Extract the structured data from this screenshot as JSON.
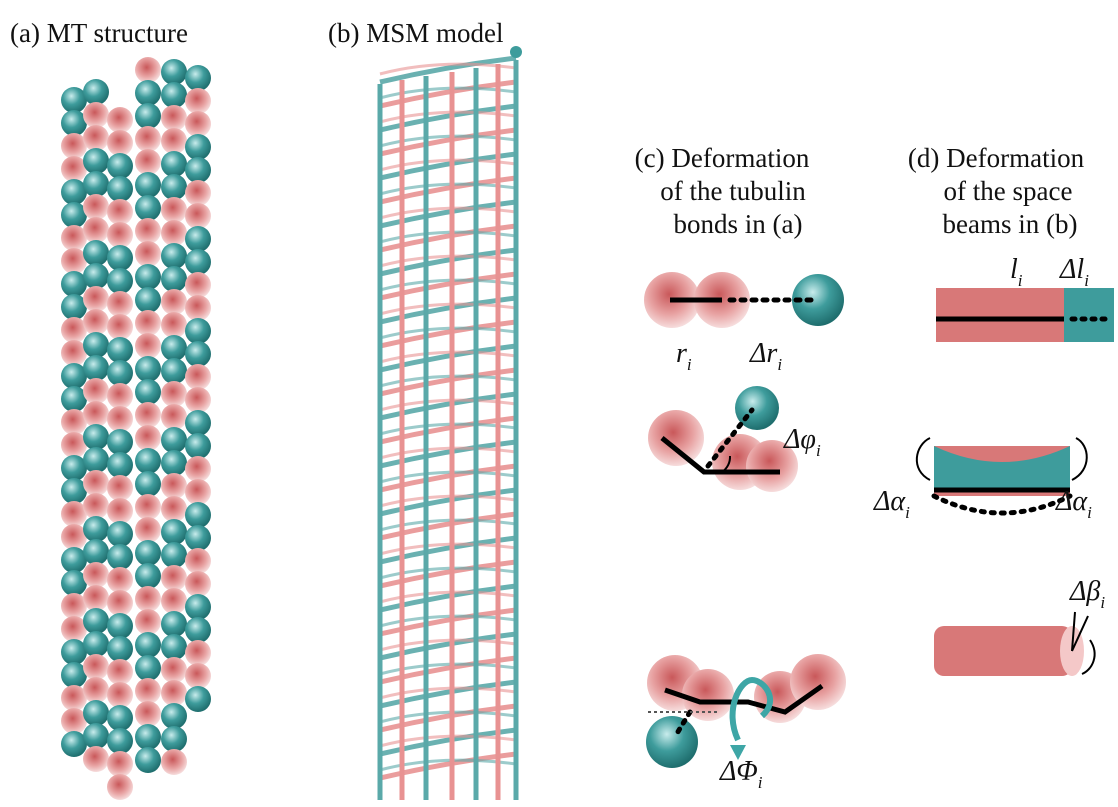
{
  "panels": {
    "a": {
      "title": "(a) MT structure"
    },
    "b": {
      "title": "(b) MSM model"
    },
    "c": {
      "title_lines": [
        "(c) Deformation",
        "of the tubulin",
        "bonds in (a)"
      ],
      "labels": [
        {
          "symbol": "r",
          "subscript": "i"
        },
        {
          "symbol": "Δr",
          "subscript": "i"
        },
        {
          "symbol": "Δφ",
          "subscript": "i"
        },
        {
          "symbol": "ΔΦ",
          "subscript": "i"
        }
      ]
    },
    "d": {
      "title_lines": [
        "(d) Deformation",
        "of the space",
        "beams in (b)"
      ],
      "labels": [
        {
          "symbol": "l",
          "subscript": "i"
        },
        {
          "symbol": "Δl",
          "subscript": "i"
        },
        {
          "symbol": "Δα",
          "subscript": "i"
        },
        {
          "symbol": "Δα",
          "subscript": "i"
        },
        {
          "symbol": "Δβ",
          "subscript": "i"
        }
      ]
    }
  }
}
